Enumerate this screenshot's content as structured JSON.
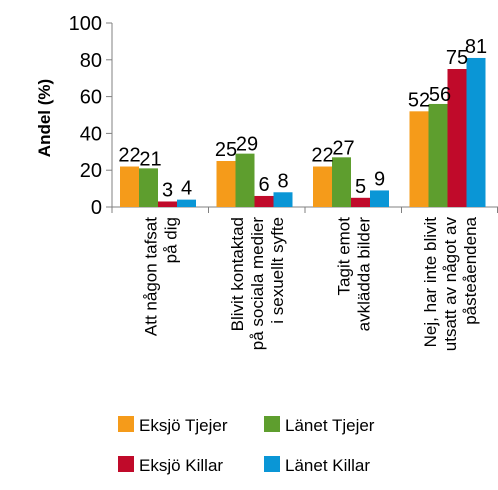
{
  "chart_data": {
    "type": "bar",
    "ylabel": "Andel (%)",
    "ylim": [
      0,
      100
    ],
    "yticks": [
      0,
      20,
      40,
      60,
      80,
      100
    ],
    "grid": false,
    "legend_position": "bottom",
    "categories": [
      [
        "Att någon tafsat",
        "på dig"
      ],
      [
        "Blivit kontaktad",
        "på sociala medier",
        "i sexuellt syfte"
      ],
      [
        "Tagit emot",
        "avklädda bilder"
      ],
      [
        "Nej, har inte blivit",
        "utsatt av något av",
        "påsteåendena"
      ]
    ],
    "series": [
      {
        "name": "Eksjö Tjejer",
        "color": "#F59B1A",
        "values": [
          22,
          25,
          22,
          52
        ]
      },
      {
        "name": "Länet Tjejer",
        "color": "#5E9E2E",
        "values": [
          21,
          29,
          27,
          56
        ]
      },
      {
        "name": "Eksjö Killar",
        "color": "#C00A2A",
        "values": [
          3,
          6,
          5,
          75
        ]
      },
      {
        "name": "Länet Killar",
        "color": "#0A96D6",
        "values": [
          4,
          8,
          9,
          81
        ]
      }
    ]
  }
}
